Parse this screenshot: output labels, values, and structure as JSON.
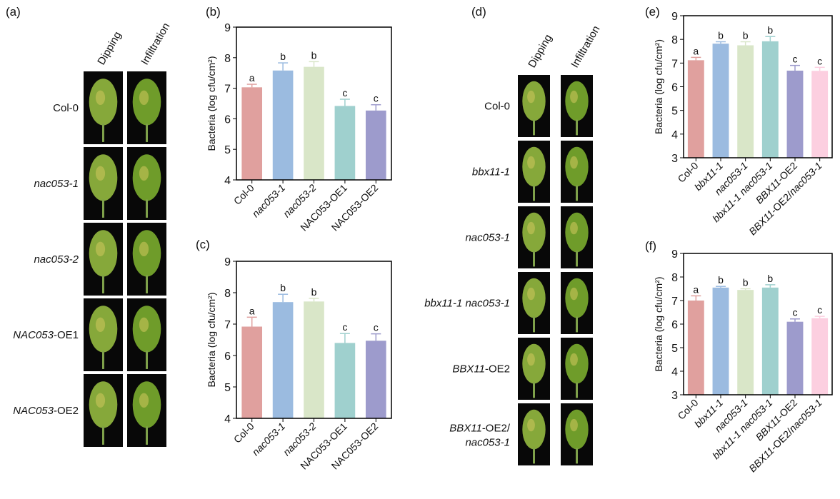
{
  "panel_labels": [
    "(a)",
    "(b)",
    "(c)",
    "(d)",
    "(e)",
    "(f)"
  ],
  "leaf_panels": [
    {
      "label": "(a)",
      "columns": [
        "Dipping",
        "Infiltration"
      ],
      "rows": [
        [
          {
            "t": "Col-0",
            "i": false
          }
        ],
        [
          {
            "t": "nac053-1",
            "i": true
          }
        ],
        [
          {
            "t": "nac053-2",
            "i": true
          }
        ],
        [
          {
            "t": "NAC053",
            "i": true
          },
          {
            "t": "-OE1",
            "i": false
          }
        ],
        [
          {
            "t": "NAC053",
            "i": true
          },
          {
            "t": "-OE2",
            "i": false
          }
        ]
      ]
    },
    {
      "label": "(d)",
      "columns": [
        "Dipping",
        "Infiltration"
      ],
      "rows": [
        [
          {
            "t": "Col-0",
            "i": false
          }
        ],
        [
          {
            "t": "bbx11-1",
            "i": true
          }
        ],
        [
          {
            "t": "nac053-1",
            "i": true
          }
        ],
        [
          {
            "t": "bbx11-1 nac053-1",
            "i": true
          }
        ],
        [
          {
            "t": "BBX11",
            "i": true
          },
          {
            "t": "-OE2",
            "i": false
          }
        ],
        [
          {
            "t": "BBX11",
            "i": true
          },
          {
            "t": "-OE2/",
            "i": false
          },
          {
            "t": "\nnac053-1",
            "i": true
          }
        ]
      ]
    }
  ],
  "chart_data": [
    {
      "panel": "(b)",
      "type": "bar",
      "ylabel": "Bacteria (log cfu/cm²)",
      "ylim": [
        4,
        9
      ],
      "yticks": [
        4,
        5,
        6,
        7,
        8,
        9
      ],
      "categories": [
        [
          {
            "t": "Col-0",
            "i": false
          }
        ],
        [
          {
            "t": "nac053-1",
            "i": true
          }
        ],
        [
          {
            "t": "nac053-2",
            "i": true
          }
        ],
        [
          {
            "t": "NAC053-OE1",
            "i": false
          }
        ],
        [
          {
            "t": "NAC053-OE2",
            "i": false
          }
        ]
      ],
      "values": [
        7.03,
        7.58,
        7.7,
        6.42,
        6.27
      ],
      "errors": [
        0.1,
        0.25,
        0.17,
        0.22,
        0.19
      ],
      "letters": [
        "a",
        "b",
        "b",
        "c",
        "c"
      ],
      "colors": [
        "#e0a09e",
        "#9bbbe0",
        "#d9e6c8",
        "#9fd0ce",
        "#9d9bcc"
      ]
    },
    {
      "panel": "(c)",
      "type": "bar",
      "ylabel": "Bacteria (log cfu/cm²)",
      "ylim": [
        4,
        9
      ],
      "yticks": [
        4,
        5,
        6,
        7,
        8,
        9
      ],
      "categories": [
        [
          {
            "t": "Col-0",
            "i": false
          }
        ],
        [
          {
            "t": "nac053-1",
            "i": true
          }
        ],
        [
          {
            "t": "nac053-2",
            "i": true
          }
        ],
        [
          {
            "t": "NAC053-OE1",
            "i": false
          }
        ],
        [
          {
            "t": "NAC053-OE2",
            "i": false
          }
        ]
      ],
      "values": [
        6.92,
        7.7,
        7.72,
        6.4,
        6.47
      ],
      "errors": [
        0.3,
        0.25,
        0.1,
        0.3,
        0.22
      ],
      "letters": [
        "a",
        "b",
        "b",
        "c",
        "c"
      ],
      "colors": [
        "#e0a09e",
        "#9bbbe0",
        "#d9e6c8",
        "#9fd0ce",
        "#9d9bcc"
      ]
    },
    {
      "panel": "(e)",
      "type": "bar",
      "ylabel": "Bacteria (log cfu/cm²)",
      "ylim": [
        3,
        9
      ],
      "yticks": [
        3,
        4,
        5,
        6,
        7,
        8,
        9
      ],
      "categories": [
        [
          {
            "t": "Col-0",
            "i": false
          }
        ],
        [
          {
            "t": "bbx11-1",
            "i": true
          }
        ],
        [
          {
            "t": "nac053-1",
            "i": true
          }
        ],
        [
          {
            "t": "bbx11-1 nac053-1",
            "i": true
          }
        ],
        [
          {
            "t": "BBX11",
            "i": true
          },
          {
            "t": "-OE2",
            "i": false
          }
        ],
        [
          {
            "t": "BBX11",
            "i": true
          },
          {
            "t": "-OE2/",
            "i": false
          },
          {
            "t": "nac053-1",
            "i": true
          }
        ]
      ],
      "values": [
        7.12,
        7.82,
        7.75,
        7.92,
        6.68,
        6.67
      ],
      "errors": [
        0.12,
        0.08,
        0.15,
        0.2,
        0.22,
        0.15
      ],
      "letters": [
        "a",
        "b",
        "b",
        "b",
        "c",
        "c"
      ],
      "colors": [
        "#e0a09e",
        "#9bbbe0",
        "#d9e6c8",
        "#9fd0ce",
        "#9d9bcc",
        "#fccfe0"
      ]
    },
    {
      "panel": "(f)",
      "type": "bar",
      "ylabel": "Bacteria (log cfu/cm²)",
      "ylim": [
        3,
        9
      ],
      "yticks": [
        3,
        4,
        5,
        6,
        7,
        8,
        9
      ],
      "categories": [
        [
          {
            "t": "Col-0",
            "i": false
          }
        ],
        [
          {
            "t": "bbx11-1",
            "i": true
          }
        ],
        [
          {
            "t": "nac053-1",
            "i": true
          }
        ],
        [
          {
            "t": "bbx11-1 nac053-1",
            "i": true
          }
        ],
        [
          {
            "t": "BBX11",
            "i": true
          },
          {
            "t": "-OE2",
            "i": false
          }
        ],
        [
          {
            "t": "BBX11",
            "i": true
          },
          {
            "t": "-OE2/",
            "i": false
          },
          {
            "t": "nac053-1",
            "i": true
          }
        ]
      ],
      "values": [
        7.0,
        7.55,
        7.45,
        7.55,
        6.1,
        6.25
      ],
      "errors": [
        0.2,
        0.05,
        0.05,
        0.12,
        0.12,
        0.08
      ],
      "letters": [
        "a",
        "b",
        "b",
        "b",
        "c",
        "c"
      ],
      "colors": [
        "#e0a09e",
        "#9bbbe0",
        "#d9e6c8",
        "#9fd0ce",
        "#9d9bcc",
        "#fccfe0"
      ]
    }
  ]
}
